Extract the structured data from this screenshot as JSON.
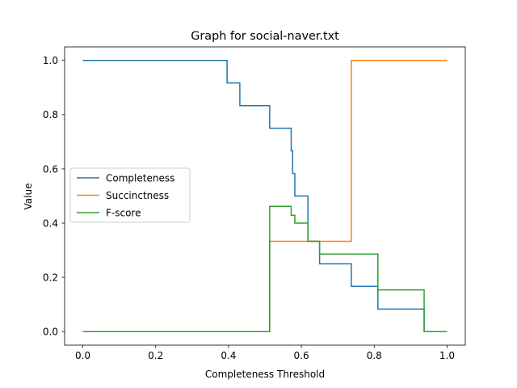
{
  "chart_data": {
    "type": "line",
    "title": "Graph for social-naver.txt",
    "xlabel": "Completeness Threshold",
    "ylabel": "Value",
    "xlim": [
      -0.05,
      1.05
    ],
    "ylim": [
      -0.05,
      1.05
    ],
    "xticks": [
      0.0,
      0.2,
      0.4,
      0.6,
      0.8,
      1.0
    ],
    "xtick_labels": [
      "0.0",
      "0.2",
      "0.4",
      "0.6",
      "0.8",
      "1.0"
    ],
    "yticks": [
      0.0,
      0.2,
      0.4,
      0.6,
      0.8,
      1.0
    ],
    "ytick_labels": [
      "0.0",
      "0.2",
      "0.4",
      "0.6",
      "0.8",
      "1.0"
    ],
    "grid": false,
    "legend": "center-left",
    "series": [
      {
        "name": "Completeness",
        "color": "#1f77b4",
        "x": [
          0.0,
          0.396,
          0.396,
          0.431,
          0.431,
          0.513,
          0.513,
          0.572,
          0.572,
          0.576,
          0.576,
          0.582,
          0.582,
          0.618,
          0.618,
          0.65,
          0.65,
          0.737,
          0.737,
          0.81,
          0.81,
          0.937,
          0.937,
          1.0
        ],
        "y": [
          1.0,
          1.0,
          0.917,
          0.917,
          0.833,
          0.833,
          0.75,
          0.75,
          0.667,
          0.667,
          0.583,
          0.583,
          0.5,
          0.5,
          0.333,
          0.333,
          0.25,
          0.25,
          0.167,
          0.167,
          0.083,
          0.083,
          0.0,
          0.0
        ]
      },
      {
        "name": "Succinctness",
        "color": "#ff7f0e",
        "x": [
          0.0,
          0.513,
          0.513,
          0.737,
          0.737,
          1.0
        ],
        "y": [
          0.0,
          0.0,
          0.333,
          0.333,
          1.0,
          1.0
        ]
      },
      {
        "name": "F-score",
        "color": "#2ca02c",
        "x": [
          0.0,
          0.513,
          0.513,
          0.572,
          0.572,
          0.582,
          0.582,
          0.618,
          0.618,
          0.65,
          0.65,
          0.81,
          0.81,
          0.937,
          0.937,
          1.0
        ],
        "y": [
          0.0,
          0.0,
          0.462,
          0.462,
          0.429,
          0.429,
          0.4,
          0.4,
          0.333,
          0.333,
          0.286,
          0.286,
          0.154,
          0.154,
          0.0,
          0.0
        ]
      }
    ]
  }
}
